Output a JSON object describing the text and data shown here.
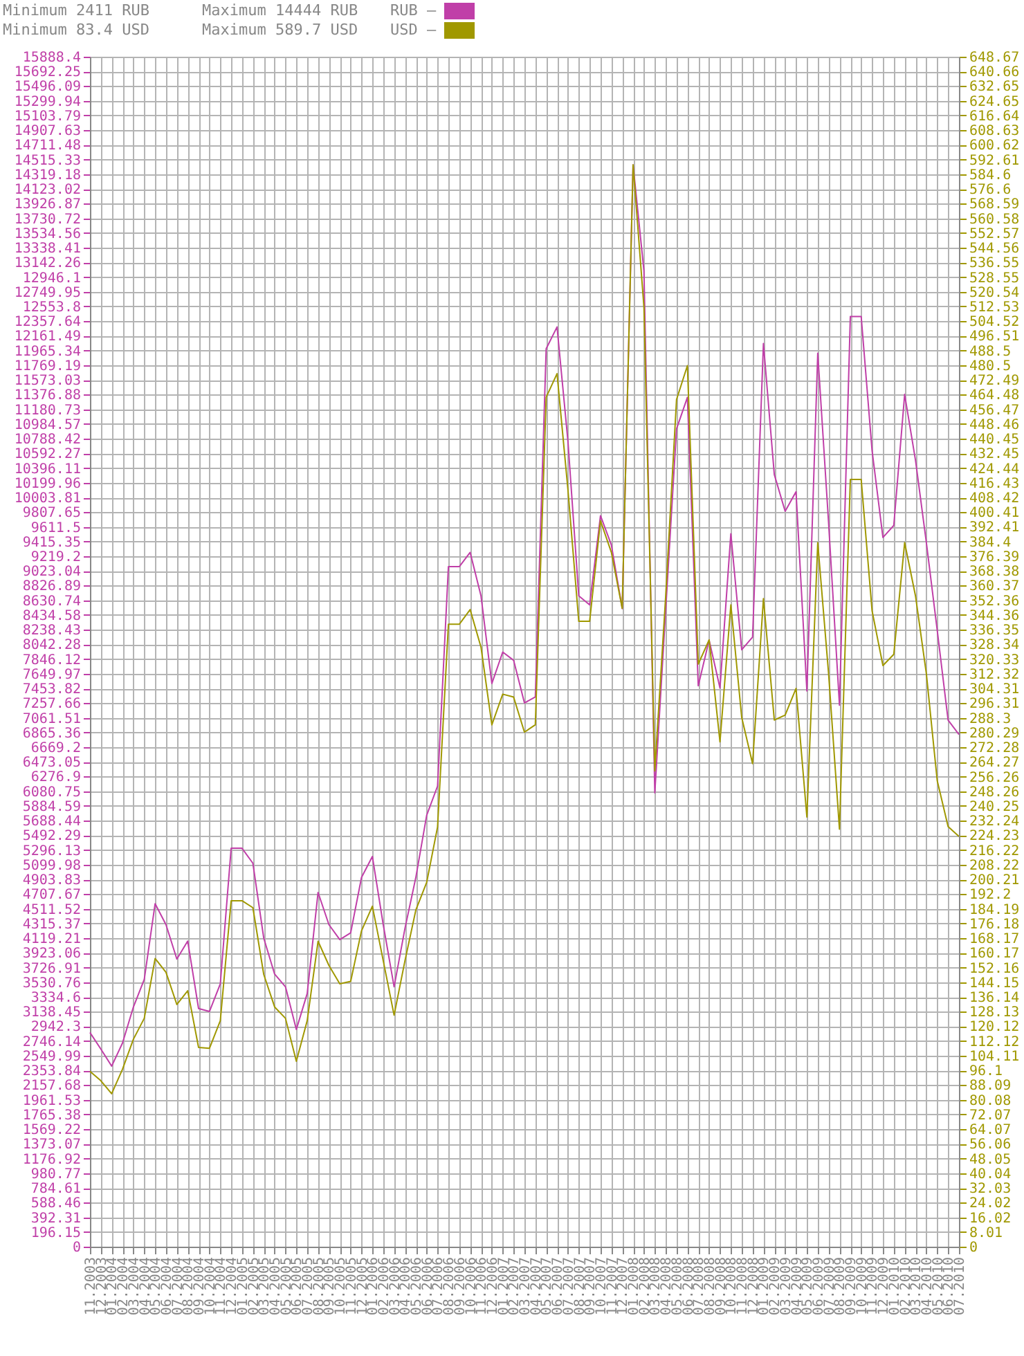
{
  "chart_data": {
    "type": "line",
    "categories": [
      "11.2003",
      "12.2003",
      "01.2004",
      "02.2004",
      "03.2004",
      "04.2004",
      "05.2004",
      "06.2004",
      "07.2004",
      "08.2004",
      "09.2004",
      "10.2004",
      "11.2004",
      "12.2004",
      "01.2005",
      "02.2005",
      "03.2005",
      "04.2005",
      "05.2005",
      "06.2005",
      "07.2005",
      "08.2005",
      "09.2005",
      "10.2005",
      "11.2005",
      "12.2005",
      "01.2006",
      "02.2006",
      "03.2006",
      "04.2006",
      "05.2006",
      "06.2006",
      "07.2006",
      "08.2006",
      "09.2006",
      "10.2006",
      "11.2006",
      "12.2006",
      "01.2007",
      "02.2007",
      "03.2007",
      "04.2007",
      "05.2007",
      "06.2007",
      "07.2007",
      "08.2007",
      "09.2007",
      "10.2007",
      "11.2007",
      "12.2007",
      "01.2008",
      "02.2008",
      "03.2008",
      "04.2008",
      "05.2008",
      "06.2008",
      "07.2008",
      "08.2008",
      "09.2008",
      "10.2008",
      "11.2008",
      "12.2008",
      "01.2009",
      "02.2009",
      "03.2009",
      "04.2009",
      "05.2009",
      "06.2009",
      "07.2009",
      "08.2009",
      "09.2009",
      "10.2009",
      "11.2009",
      "12.2009",
      "01.2010",
      "02.2010",
      "03.2010",
      "04.2010",
      "05.2010",
      "06.2010",
      "07.2010"
    ],
    "series": [
      {
        "name": "RUB –",
        "color": "#c03fa8",
        "values": [
          2860,
          2640,
          2411,
          2720,
          3200,
          3570,
          4580,
          4300,
          3840,
          4080,
          3180,
          3140,
          3510,
          5320,
          5320,
          5120,
          4120,
          3640,
          3470,
          2900,
          3380,
          4730,
          4300,
          4100,
          4190,
          4930,
          5210,
          4300,
          3470,
          4250,
          4930,
          5760,
          6150,
          9080,
          9080,
          9270,
          8690,
          7520,
          7940,
          7830,
          7260,
          7340,
          11990,
          12280,
          10760,
          8690,
          8570,
          9760,
          9370,
          8520,
          14444,
          13030,
          6060,
          8500,
          10920,
          11340,
          7490,
          8100,
          7460,
          9520,
          7970,
          8140,
          12060,
          10310,
          9820,
          10080,
          7420,
          11930,
          9660,
          7230,
          12420,
          12420,
          10630,
          9470,
          9630,
          11380,
          10500,
          9400,
          8230,
          7030,
          6840
        ]
      },
      {
        "name": "USD –",
        "color": "#a09800",
        "axis": "y2",
        "values": [
          95.6,
          90.5,
          83.4,
          96.8,
          113.1,
          124.5,
          157.1,
          149.6,
          132,
          139.5,
          108.6,
          108.1,
          123.2,
          188.6,
          188.6,
          184.8,
          148.4,
          130.7,
          124.5,
          101.1,
          123.2,
          166.5,
          153.3,
          143.3,
          144.6,
          172.2,
          185.6,
          155.9,
          126.2,
          155.9,
          183.5,
          198.6,
          228.8,
          339.3,
          339.3,
          347.3,
          326.8,
          284.5,
          301.2,
          299.6,
          280.5,
          284.5,
          463.1,
          475.9,
          412.9,
          340.9,
          340.9,
          395.7,
          378.5,
          348,
          589.7,
          512.2,
          259.4,
          354.5,
          461.8,
          480.3,
          317.6,
          330.8,
          275.2,
          349.9,
          288.5,
          263.3,
          353.3,
          287.1,
          289.8,
          304.3,
          234.2,
          383.8,
          312.3,
          227.6,
          418.2,
          418.2,
          346.7,
          316.8,
          322.9,
          383.8,
          354.7,
          312.3,
          254,
          229,
          223.6
        ]
      }
    ],
    "ylim": [
      0,
      15888.4
    ],
    "yticks": [
      0,
      196.15,
      392.31,
      588.46,
      784.61,
      980.77,
      1176.92,
      1373.07,
      1569.22,
      1765.38,
      1961.53,
      2157.68,
      2353.84,
      2549.99,
      2746.14,
      2942.3,
      3138.45,
      3334.6,
      3530.76,
      3726.91,
      3923.06,
      4119.21,
      4315.37,
      4511.52,
      4707.67,
      4903.83,
      5099.98,
      5296.13,
      5492.29,
      5688.44,
      5884.59,
      6080.75,
      6276.9,
      6473.05,
      6669.2,
      6865.36,
      7061.51,
      7257.66,
      7453.82,
      7649.97,
      7846.12,
      8042.28,
      8238.43,
      8434.58,
      8630.74,
      8826.89,
      9023.04,
      9219.2,
      9415.35,
      9611.5,
      9807.65,
      10003.81,
      10199.96,
      10396.11,
      10592.27,
      10788.42,
      10984.57,
      11180.73,
      11376.88,
      11573.03,
      11769.19,
      11965.34,
      12161.49,
      12357.64,
      12553.8,
      12749.95,
      12946.1,
      13142.26,
      13338.41,
      13534.56,
      13730.72,
      13926.87,
      14123.02,
      14319.18,
      14515.33,
      14711.48,
      14907.63,
      15103.79,
      15299.94,
      15496.09,
      15692.25,
      15888.4
    ],
    "y2lim": [
      0,
      648.67
    ],
    "y2ticks": [
      0,
      8.01,
      16.02,
      24.02,
      32.03,
      40.04,
      48.05,
      56.06,
      64.07,
      72.07,
      80.08,
      88.09,
      96.1,
      104.11,
      112.12,
      120.12,
      128.13,
      136.14,
      144.15,
      152.16,
      160.17,
      168.17,
      176.18,
      184.19,
      192.2,
      200.21,
      208.22,
      216.22,
      224.23,
      232.24,
      240.25,
      248.26,
      256.26,
      264.27,
      272.28,
      280.29,
      288.3,
      296.31,
      304.31,
      312.32,
      320.33,
      328.34,
      336.35,
      344.36,
      352.36,
      360.37,
      368.38,
      376.39,
      384.4,
      392.41,
      400.41,
      408.42,
      416.43,
      424.44,
      432.45,
      440.45,
      448.46,
      456.47,
      464.48,
      472.49,
      480.5,
      488.5,
      496.51,
      504.52,
      512.53,
      520.54,
      528.55,
      536.55,
      544.56,
      552.57,
      560.58,
      568.59,
      576.6,
      584.6,
      592.61,
      600.62,
      608.63,
      616.64,
      624.65,
      632.65,
      640.66,
      648.67
    ],
    "annotations": [
      "Minimum 2411 RUB",
      "Minimum 83.4 USD",
      "Maximum 14444 RUB",
      "Maximum 589.7 USD"
    ],
    "grid": true,
    "legend": "top"
  }
}
